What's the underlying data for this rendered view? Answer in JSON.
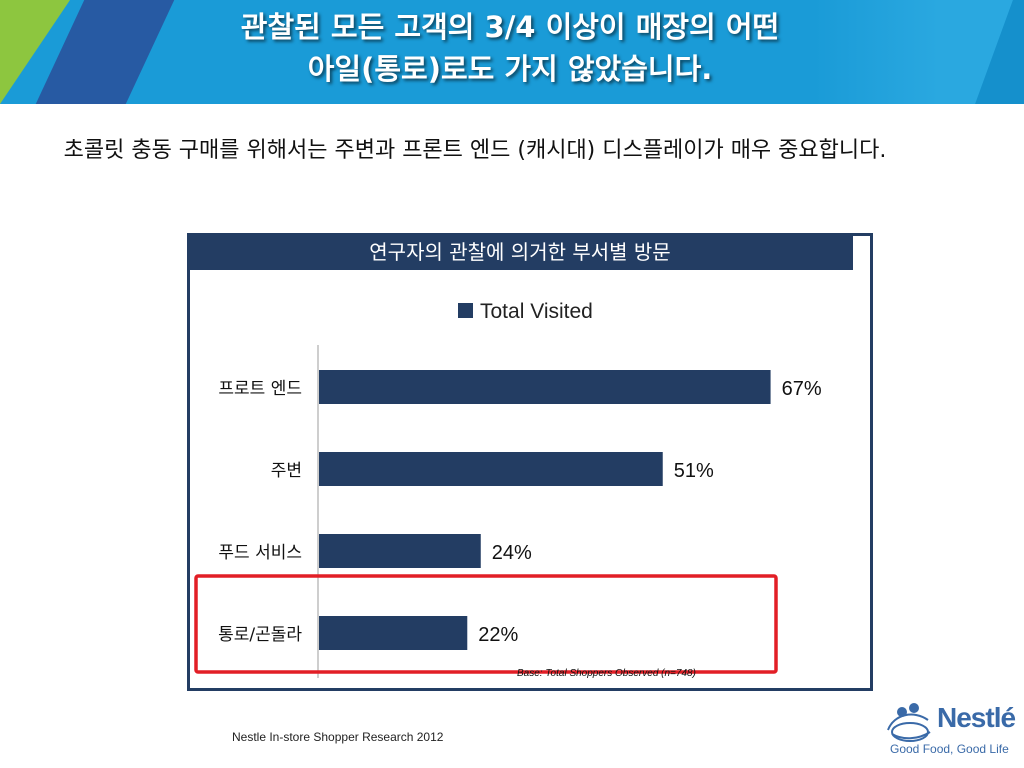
{
  "slide": {
    "title_line1": "관찰된 모든 고객의 3/4 이상이 매장의 어떤",
    "title_line2": "아일(통로)로도 가지 않았습니다.",
    "subtitle": "초콜릿 충동 구매를 위해서는 주변과 프론트 엔드 (캐시대) 디스플레이가 매우 중요합니다.",
    "footer": "Nestle In-store Shopper Research 2012",
    "logo_name": "Nestlé",
    "logo_tagline": "Good Food, Good Life"
  },
  "colors": {
    "header_blue": "#1a9bd7",
    "bar_navy": "#233d63",
    "highlight_red": "#e21e26"
  },
  "chart_data": {
    "type": "bar",
    "orientation": "horizontal",
    "title": "연구자의 관찰에 의거한 부서별 방문",
    "categories": [
      "프로트 엔드",
      "주변",
      "푸드 서비스",
      "통로/곤돌라"
    ],
    "series": [
      {
        "name": "Total Visited",
        "values": [
          67,
          51,
          24,
          22
        ]
      }
    ],
    "data_labels": [
      "67%",
      "51%",
      "24%",
      "22%"
    ],
    "xlim": [
      0,
      80
    ],
    "legend": "top",
    "grid": false,
    "note": "Base:  Total Shoppers Observed (n=748)",
    "highlighted_category": "통로/곤돌라"
  }
}
